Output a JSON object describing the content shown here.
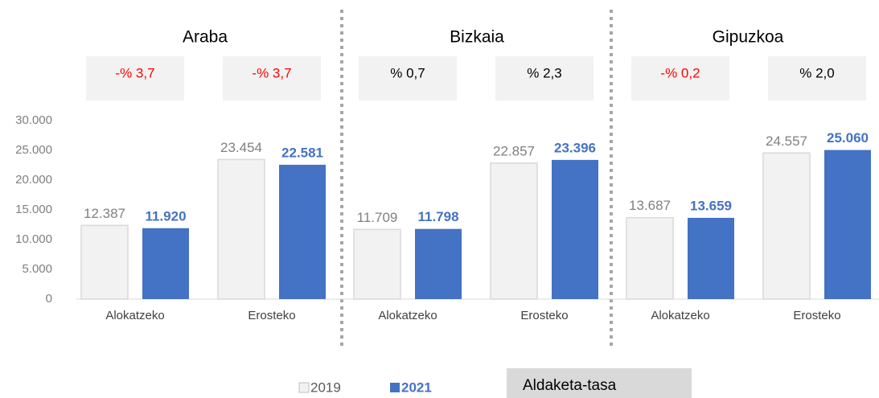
{
  "chart_data": {
    "type": "bar",
    "groups": [
      "Araba",
      "Bizkaia",
      "Gipuzkoa"
    ],
    "categories": [
      "Alokatzeko",
      "Erosteko",
      "Alokatzeko",
      "Erosteko",
      "Alokatzeko",
      "Erosteko"
    ],
    "series": [
      {
        "name": "2019",
        "color": "#f2f2f2",
        "values": [
          12387,
          23454,
          11709,
          22857,
          13687,
          24557
        ],
        "value_labels": [
          "12.387",
          "23.454",
          "11.709",
          "22.857",
          "13.687",
          "24.557"
        ]
      },
      {
        "name": "2021",
        "color": "#4472c4",
        "values": [
          11920,
          22581,
          11798,
          23396,
          13659,
          25060
        ],
        "value_labels": [
          "11.920",
          "22.581",
          "11.798",
          "23.396",
          "13.659",
          "25.060"
        ]
      }
    ],
    "rate_name": "Aldaketa-tasa",
    "rates": [
      -3.7,
      -3.7,
      0.7,
      2.3,
      -0.2,
      2.0
    ],
    "rate_labels": [
      "-% 3,7",
      "-% 3,7",
      "% 0,7",
      "% 2,3",
      "-% 0,2",
      "% 2,0"
    ],
    "ylim": [
      0,
      30000
    ],
    "yticks": [
      0,
      {
        "value": 5000,
        "label": "5.000"
      },
      {
        "value": 10000,
        "label": "10.000"
      },
      {
        "value": 15000,
        "label": "15.000"
      },
      {
        "value": 20000,
        "label": "20.000"
      },
      {
        "value": 25000,
        "label": "25.000"
      },
      {
        "value": 30000,
        "label": "30.000"
      }
    ]
  }
}
